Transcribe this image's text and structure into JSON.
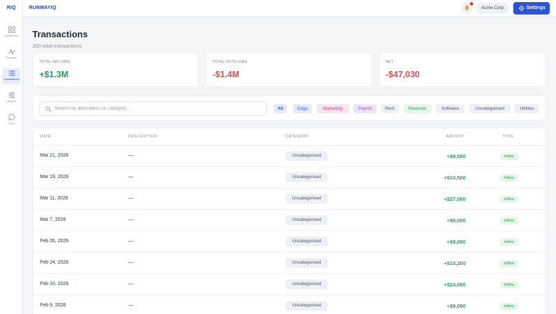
{
  "sidebar": {
    "logo": "RIQ",
    "items": [
      {
        "label": "Dashboard",
        "icon": "dashboard-grid-icon",
        "active": false
      },
      {
        "label": "Forecast",
        "icon": "forecast-line-icon",
        "active": false
      },
      {
        "label": "Transactions",
        "icon": "list-icon",
        "active": true
      },
      {
        "label": "What-if",
        "icon": "sliders-icon",
        "active": false
      },
      {
        "label": "Chat",
        "icon": "chat-bubble-icon",
        "active": false
      }
    ]
  },
  "header": {
    "brand": "RUNWAYIQ",
    "notifications_icon": "bell-icon",
    "org_name": "Acme Corp",
    "settings_label": "Settings",
    "settings_icon": "gear-icon"
  },
  "page": {
    "title": "Transactions",
    "subtitle": "200 total transactions"
  },
  "summary": {
    "inflows_label": "TOTAL INFLOWS",
    "inflows_value": "+$1.3M",
    "outflows_label": "TOTAL OUTFLOWS",
    "outflows_value": "-$1.4M",
    "net_label": "NET",
    "net_value": "-$47,030"
  },
  "filters": {
    "search_placeholder": "Search by description or category...",
    "search_value": "",
    "chips": [
      {
        "label": "All",
        "bg": "#e3e9fb",
        "fg": "#2c54d6",
        "bold": true
      },
      {
        "label": "Cogs",
        "bg": "#e3e9fb",
        "fg": "#2c54d6",
        "bold": false
      },
      {
        "label": "Marketing",
        "bg": "#fbe3ec",
        "fg": "#c8467a",
        "bold": false
      },
      {
        "label": "Payroll",
        "bg": "#ede6fb",
        "fg": "#7b57c9",
        "bold": false
      },
      {
        "label": "Rent",
        "bg": "#eef0f3",
        "fg": "#4b5563",
        "bold": false
      },
      {
        "label": "Revenue",
        "bg": "#e3f6ea",
        "fg": "#22a05b",
        "bold": false
      },
      {
        "label": "Software",
        "bg": "#eef0f3",
        "fg": "#4b5563",
        "bold": false
      },
      {
        "label": "Uncategorised",
        "bg": "#eef0f3",
        "fg": "#4b5563",
        "bold": false
      },
      {
        "label": "Utilities",
        "bg": "#eef0f3",
        "fg": "#4b5563",
        "bold": false
      }
    ]
  },
  "table": {
    "columns": {
      "date": "DATE",
      "description": "DESCRIPTION",
      "category": "CATEGORY",
      "amount": "AMOUNT",
      "type": "TYPE"
    },
    "rows": [
      {
        "date": "Mar 21, 2026",
        "description": "—",
        "category": "Uncategorised",
        "amount": "+$8,500",
        "type": "Inflow"
      },
      {
        "date": "Mar 19, 2026",
        "description": "—",
        "category": "Uncategorised",
        "amount": "+$10,500",
        "type": "Inflow"
      },
      {
        "date": "Mar 11, 2026",
        "description": "—",
        "category": "Uncategorised",
        "amount": "+$27,000",
        "type": "Inflow"
      },
      {
        "date": "Mar 7, 2026",
        "description": "—",
        "category": "Uncategorised",
        "amount": "+$8,000",
        "type": "Inflow"
      },
      {
        "date": "Feb 26, 2026",
        "description": "—",
        "category": "Uncategorised",
        "amount": "+$8,000",
        "type": "Inflow"
      },
      {
        "date": "Feb 24, 2026",
        "description": "—",
        "category": "Uncategorised",
        "amount": "+$10,200",
        "type": "Inflow"
      },
      {
        "date": "Feb 10, 2026",
        "description": "—",
        "category": "Uncategorised",
        "amount": "+$24,000",
        "type": "Inflow"
      },
      {
        "date": "Feb 9, 2026",
        "description": "—",
        "category": "Uncategorised",
        "amount": "+$9,000",
        "type": "Inflow"
      }
    ]
  },
  "colors": {
    "accent": "#2c54d6",
    "positive": "#22a05b",
    "negative": "#d9534f"
  }
}
